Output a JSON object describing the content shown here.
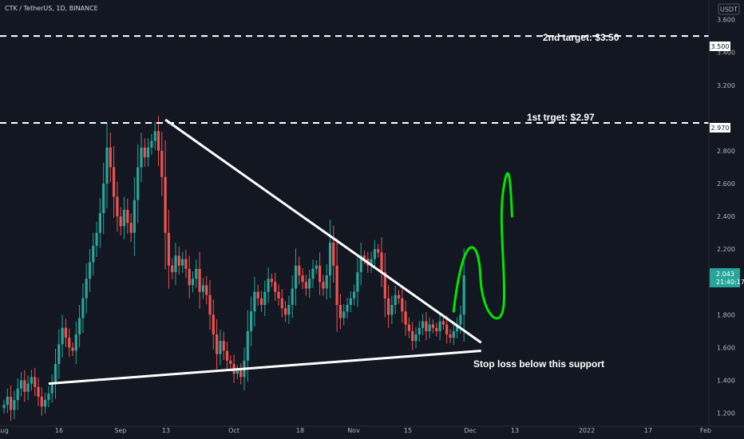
{
  "header": {
    "symbol_line": "CTK / TetherUS, 1D, BINANCE",
    "currency_badge": "USDT"
  },
  "colors": {
    "background": "#131722",
    "up": "#26a69a",
    "down": "#ef5350",
    "trendline": "#ffffff",
    "projection": "#00e600",
    "price_label": "#26a69a"
  },
  "chart_data": {
    "type": "candlestick",
    "symbol": "CTK / TetherUS",
    "interval": "1D",
    "exchange": "BINANCE",
    "currency": "USDT",
    "ylim": [
      1.12,
      3.72
    ],
    "y_ticks": [
      "3.600",
      "3.400",
      "3.200",
      "2.800",
      "2.600",
      "2.400",
      "2.200",
      "1.800",
      "1.600",
      "1.400",
      "1.200"
    ],
    "x_ticks": [
      "Aug",
      "16",
      "Sep",
      "13",
      "Oct",
      "18",
      "Nov",
      "15",
      "Dec",
      "13",
      "2022",
      "17",
      "Feb"
    ],
    "ohlc_approx": [
      1.25,
      1.3,
      1.22,
      1.28,
      1.35,
      1.4,
      1.33,
      1.38,
      1.42,
      1.36,
      1.3,
      1.24,
      1.28,
      1.32,
      1.38,
      1.5,
      1.62,
      1.72,
      1.66,
      1.6,
      1.58,
      1.68,
      1.78,
      1.9,
      2.02,
      2.12,
      2.22,
      2.3,
      2.42,
      2.6,
      2.82,
      2.7,
      2.52,
      2.4,
      2.34,
      2.44,
      2.36,
      2.3,
      2.5,
      2.7,
      2.82,
      2.76,
      2.82,
      2.86,
      2.92,
      2.8,
      2.64,
      2.3,
      2.1,
      2.06,
      2.16,
      2.1,
      2.14,
      2.08,
      1.98,
      2.02,
      2.08,
      1.94,
      1.98,
      1.92,
      1.8,
      1.68,
      1.56,
      1.64,
      1.58,
      1.52,
      1.5,
      1.44,
      1.46,
      1.42,
      1.52,
      1.7,
      1.82,
      1.94,
      1.9,
      1.86,
      1.94,
      2.02,
      2.0,
      1.94,
      1.9,
      1.84,
      1.8,
      1.86,
      1.96,
      2.1,
      2.04,
      2.0,
      1.96,
      2.02,
      2.08,
      2.1,
      2.0,
      1.96,
      2.04,
      2.24,
      2.1,
      1.86,
      1.78,
      1.82,
      1.86,
      1.9,
      1.94,
      2.06,
      2.16,
      2.14,
      2.1,
      2.14,
      2.2,
      2.18,
      2.06,
      1.9,
      1.8,
      1.86,
      1.92,
      1.9,
      1.82,
      1.74,
      1.7,
      1.64,
      1.68,
      1.72,
      1.76,
      1.7,
      1.74,
      1.72,
      1.7,
      1.76,
      1.74,
      1.68,
      1.66,
      1.7,
      1.74,
      1.8,
      2.04
    ],
    "last_price": "2.043",
    "countdown": "21:40:17",
    "levels": [
      {
        "label": "2nd target: $3.50",
        "value": 3.5,
        "tag": "3.500"
      },
      {
        "label": "1st trget: $2.97",
        "value": 2.97,
        "tag": "2.970"
      }
    ],
    "support_label": "Stop loss below this support",
    "triangle": {
      "upper_line": [
        [
          47,
          2.99
        ],
        [
          139,
          1.63
        ]
      ],
      "lower_line": [
        [
          13,
          1.38
        ],
        [
          139,
          1.58
        ]
      ]
    },
    "projection_path": [
      [
        131,
        1.82
      ],
      [
        136,
        2.18
      ],
      [
        141,
        1.83
      ],
      [
        145,
        2.56
      ],
      [
        148,
        2.4
      ]
    ]
  }
}
